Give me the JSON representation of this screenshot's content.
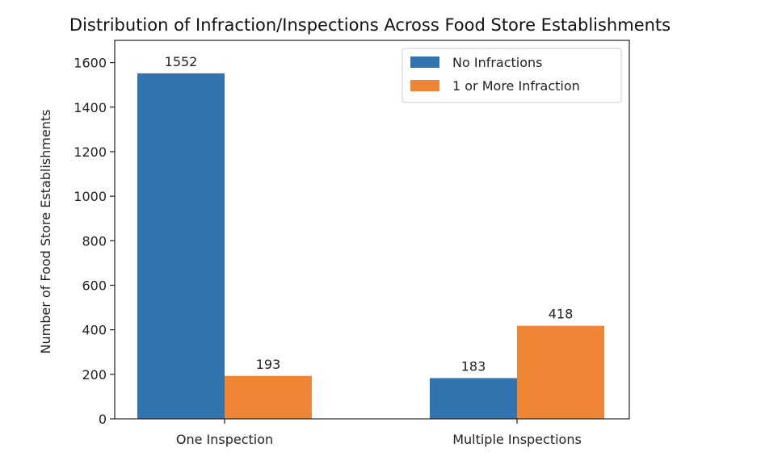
{
  "chart_data": {
    "type": "bar",
    "title": "Distribution of Infraction/Inspections Across Food Store Establishments",
    "xlabel": "",
    "ylabel": "Number of Food Store Establishments",
    "categories": [
      "One Inspection",
      "Multiple Inspections"
    ],
    "series": [
      {
        "name": "No Infractions",
        "values": [
          1552,
          183
        ],
        "color": "#3274b0"
      },
      {
        "name": "1 or More Infraction",
        "values": [
          193,
          418
        ],
        "color": "#ef8636"
      }
    ],
    "ylim": [
      0,
      1700
    ],
    "yticks": [
      0,
      200,
      400,
      600,
      800,
      1000,
      1200,
      1400,
      1600
    ],
    "legend_position": "top-right",
    "grid": false,
    "data_labels": true
  }
}
